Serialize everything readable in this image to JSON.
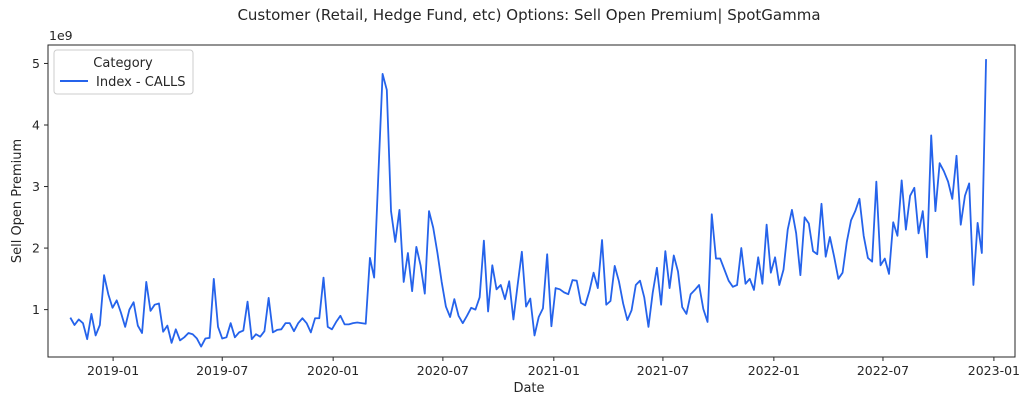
{
  "chart_data": {
    "type": "line",
    "title": "Customer (Retail, Hedge Fund, etc) Options: Sell Open Premium| SpotGamma",
    "xlabel": "Date",
    "ylabel": "Sell Open Premium",
    "y_offset_label": "1e9",
    "y_scale": 1000000000,
    "xlim": [
      "2018-09-15",
      "2023-02-05"
    ],
    "ylim": [
      0.23,
      5.3
    ],
    "x_ticks": [
      {
        "date": "2019-01-01",
        "label": "2019-01"
      },
      {
        "date": "2019-07-01",
        "label": "2019-07"
      },
      {
        "date": "2020-01-01",
        "label": "2020-01"
      },
      {
        "date": "2020-07-01",
        "label": "2020-07"
      },
      {
        "date": "2021-01-01",
        "label": "2021-01"
      },
      {
        "date": "2021-07-01",
        "label": "2021-07"
      },
      {
        "date": "2022-01-01",
        "label": "2022-01"
      },
      {
        "date": "2022-07-01",
        "label": "2022-07"
      },
      {
        "date": "2023-01-01",
        "label": "2023-01"
      }
    ],
    "y_ticks": [
      {
        "value": 1,
        "label": "1"
      },
      {
        "value": 2,
        "label": "2"
      },
      {
        "value": 3,
        "label": "3"
      },
      {
        "value": 4,
        "label": "4"
      },
      {
        "value": 5,
        "label": "5"
      }
    ],
    "grid": false,
    "legend": {
      "title": "Category",
      "placement": "top-left"
    },
    "series": [
      {
        "name": "Index - CALLS",
        "color": "#2563eb",
        "x": [
          "2018-10-22",
          "2018-10-29",
          "2018-11-05",
          "2018-11-12",
          "2018-11-19",
          "2018-11-26",
          "2018-12-03",
          "2018-12-10",
          "2018-12-17",
          "2018-12-24",
          "2018-12-31",
          "2019-01-07",
          "2019-01-14",
          "2019-01-21",
          "2019-01-28",
          "2019-02-04",
          "2019-02-11",
          "2019-02-18",
          "2019-02-25",
          "2019-03-04",
          "2019-03-11",
          "2019-03-18",
          "2019-03-25",
          "2019-04-01",
          "2019-04-08",
          "2019-04-15",
          "2019-04-22",
          "2019-04-29",
          "2019-05-06",
          "2019-05-13",
          "2019-05-20",
          "2019-05-27",
          "2019-06-03",
          "2019-06-10",
          "2019-06-17",
          "2019-06-24",
          "2019-07-01",
          "2019-07-08",
          "2019-07-15",
          "2019-07-22",
          "2019-07-29",
          "2019-08-05",
          "2019-08-12",
          "2019-08-19",
          "2019-08-26",
          "2019-09-02",
          "2019-09-09",
          "2019-09-16",
          "2019-09-23",
          "2019-09-30",
          "2019-10-07",
          "2019-10-14",
          "2019-10-21",
          "2019-10-28",
          "2019-11-04",
          "2019-11-11",
          "2019-11-18",
          "2019-11-25",
          "2019-12-02",
          "2019-12-09",
          "2019-12-16",
          "2019-12-23",
          "2019-12-30",
          "2020-01-06",
          "2020-01-13",
          "2020-01-20",
          "2020-01-27",
          "2020-02-03",
          "2020-02-10",
          "2020-02-17",
          "2020-02-24",
          "2020-03-02",
          "2020-03-09",
          "2020-03-16",
          "2020-03-23",
          "2020-03-30",
          "2020-04-06",
          "2020-04-13",
          "2020-04-20",
          "2020-04-27",
          "2020-05-04",
          "2020-05-11",
          "2020-05-18",
          "2020-05-25",
          "2020-06-01",
          "2020-06-08",
          "2020-06-15",
          "2020-06-22",
          "2020-06-29",
          "2020-07-06",
          "2020-07-13",
          "2020-07-20",
          "2020-07-27",
          "2020-08-03",
          "2020-08-10",
          "2020-08-17",
          "2020-08-24",
          "2020-08-31",
          "2020-09-07",
          "2020-09-14",
          "2020-09-21",
          "2020-09-28",
          "2020-10-05",
          "2020-10-12",
          "2020-10-19",
          "2020-10-26",
          "2020-11-02",
          "2020-11-09",
          "2020-11-16",
          "2020-11-23",
          "2020-11-30",
          "2020-12-07",
          "2020-12-14",
          "2020-12-21",
          "2020-12-28",
          "2021-01-04",
          "2021-01-11",
          "2021-01-18",
          "2021-01-25",
          "2021-02-01",
          "2021-02-08",
          "2021-02-15",
          "2021-02-22",
          "2021-03-01",
          "2021-03-08",
          "2021-03-15",
          "2021-03-22",
          "2021-03-29",
          "2021-04-05",
          "2021-04-12",
          "2021-04-19",
          "2021-04-26",
          "2021-05-03",
          "2021-05-10",
          "2021-05-17",
          "2021-05-24",
          "2021-05-31",
          "2021-06-07",
          "2021-06-14",
          "2021-06-21",
          "2021-06-28",
          "2021-07-05",
          "2021-07-12",
          "2021-07-19",
          "2021-07-26",
          "2021-08-02",
          "2021-08-09",
          "2021-08-16",
          "2021-08-23",
          "2021-08-30",
          "2021-09-06",
          "2021-09-13",
          "2021-09-20",
          "2021-09-27",
          "2021-10-04",
          "2021-10-11",
          "2021-10-18",
          "2021-10-25",
          "2021-11-01",
          "2021-11-08",
          "2021-11-15",
          "2021-11-22",
          "2021-11-29",
          "2021-12-06",
          "2021-12-13",
          "2021-12-20",
          "2021-12-27",
          "2022-01-03",
          "2022-01-10",
          "2022-01-17",
          "2022-01-24",
          "2022-01-31",
          "2022-02-07",
          "2022-02-14",
          "2022-02-21",
          "2022-02-28",
          "2022-03-07",
          "2022-03-14",
          "2022-03-21",
          "2022-03-28",
          "2022-04-04",
          "2022-04-11",
          "2022-04-18",
          "2022-04-25",
          "2022-05-02",
          "2022-05-09",
          "2022-05-16",
          "2022-05-23",
          "2022-05-30",
          "2022-06-06",
          "2022-06-13",
          "2022-06-20",
          "2022-06-27",
          "2022-07-04",
          "2022-07-11",
          "2022-07-18",
          "2022-07-25",
          "2022-08-01",
          "2022-08-08",
          "2022-08-15",
          "2022-08-22",
          "2022-08-29",
          "2022-09-05",
          "2022-09-12",
          "2022-09-19",
          "2022-09-26",
          "2022-10-03",
          "2022-10-10",
          "2022-10-17",
          "2022-10-24",
          "2022-10-31",
          "2022-11-07",
          "2022-11-14",
          "2022-11-21",
          "2022-11-28",
          "2022-12-05",
          "2022-12-12",
          "2022-12-19"
        ],
        "values": [
          0.87,
          0.75,
          0.84,
          0.78,
          0.52,
          0.93,
          0.58,
          0.75,
          1.56,
          1.25,
          1.03,
          1.15,
          0.95,
          0.72,
          1.0,
          1.12,
          0.74,
          0.62,
          1.45,
          0.98,
          1.08,
          1.1,
          0.64,
          0.74,
          0.46,
          0.68,
          0.5,
          0.55,
          0.62,
          0.6,
          0.53,
          0.4,
          0.53,
          0.54,
          1.5,
          0.72,
          0.53,
          0.55,
          0.78,
          0.55,
          0.63,
          0.66,
          1.13,
          0.52,
          0.6,
          0.56,
          0.65,
          1.19,
          0.63,
          0.67,
          0.68,
          0.78,
          0.78,
          0.65,
          0.78,
          0.86,
          0.78,
          0.63,
          0.86,
          0.86,
          1.52,
          0.72,
          0.68,
          0.8,
          0.9,
          0.76,
          0.76,
          0.78,
          0.79,
          0.78,
          0.77,
          1.84,
          1.52,
          3.2,
          4.83,
          4.57,
          2.6,
          2.1,
          2.62,
          1.45,
          1.92,
          1.3,
          2.02,
          1.72,
          1.26,
          2.6,
          2.33,
          1.92,
          1.45,
          1.05,
          0.88,
          1.17,
          0.9,
          0.78,
          0.9,
          1.03,
          1.0,
          1.2,
          2.12,
          0.97,
          1.72,
          1.33,
          1.4,
          1.17,
          1.46,
          0.84,
          1.4,
          1.94,
          1.05,
          1.18,
          0.58,
          0.88,
          1.02,
          1.9,
          0.73,
          1.35,
          1.33,
          1.28,
          1.25,
          1.48,
          1.47,
          1.11,
          1.07,
          1.3,
          1.6,
          1.35,
          2.13,
          1.08,
          1.14,
          1.71,
          1.46,
          1.1,
          0.83,
          0.99,
          1.4,
          1.47,
          1.2,
          0.72,
          1.27,
          1.68,
          1.08,
          1.95,
          1.35,
          1.88,
          1.62,
          1.04,
          0.93,
          1.25,
          1.32,
          1.4,
          1.01,
          0.8,
          2.55,
          1.83,
          1.83,
          1.65,
          1.47,
          1.37,
          1.4,
          2.0,
          1.42,
          1.5,
          1.32,
          1.85,
          1.42,
          2.38,
          1.6,
          1.85,
          1.4,
          1.65,
          2.3,
          2.62,
          2.24,
          1.56,
          2.5,
          2.4,
          1.95,
          1.9,
          2.72,
          1.86,
          2.18,
          1.86,
          1.5,
          1.6,
          2.1,
          2.45,
          2.6,
          2.8,
          2.2,
          1.84,
          1.78,
          3.08,
          1.72,
          1.83,
          1.58,
          2.42,
          2.2,
          3.1,
          2.3,
          2.85,
          2.98,
          2.24,
          2.6,
          1.85,
          3.83,
          2.6,
          3.38,
          3.25,
          3.08,
          2.8,
          3.5,
          2.38,
          2.85,
          3.05,
          1.4,
          2.41,
          1.92,
          5.07
        ]
      }
    ]
  }
}
